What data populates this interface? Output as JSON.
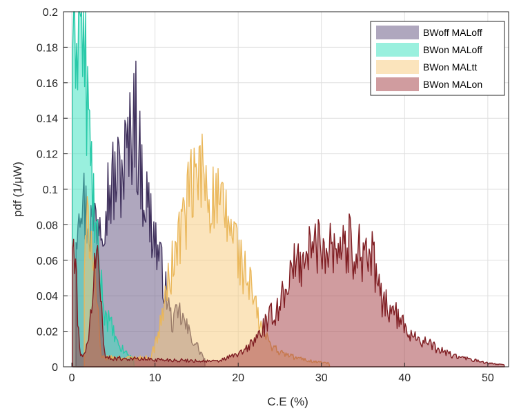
{
  "chart_data": {
    "type": "area",
    "xlabel": "C.E (%)",
    "ylabel": "pdf (1/μW)",
    "xlim": [
      -1,
      52.5
    ],
    "ylim": [
      0,
      0.2
    ],
    "x_ticks": [
      "0",
      "10",
      "20",
      "30",
      "40",
      "50"
    ],
    "x_tick_values": [
      0,
      10,
      20,
      30,
      40,
      50
    ],
    "y_ticks": [
      "0",
      "0.02",
      "0.04",
      "0.06",
      "0.08",
      "0.1",
      "0.12",
      "0.14",
      "0.16",
      "0.18",
      "0.2"
    ],
    "y_tick_values": [
      0,
      0.02,
      0.04,
      0.06,
      0.08,
      0.1,
      0.12,
      0.14,
      0.16,
      0.18,
      0.2
    ],
    "grid": true,
    "legend_position": "top-right",
    "series": [
      {
        "name": "BWoff MALoff",
        "fill": "#5f4f7d",
        "line": "#3e2f5b",
        "peaks": [
          {
            "x": 0.5,
            "y": 0.08
          },
          {
            "x": 1.0,
            "y": 0.107
          },
          {
            "x": 1.5,
            "y": 0.09
          },
          {
            "x": 2.2,
            "y": 0.08
          },
          {
            "x": 3.5,
            "y": 0.09
          },
          {
            "x": 4.0,
            "y": 0.095
          },
          {
            "x": 5.0,
            "y": 0.104
          },
          {
            "x": 6.0,
            "y": 0.11
          },
          {
            "x": 7.0,
            "y": 0.125
          },
          {
            "x": 7.5,
            "y": 0.153
          },
          {
            "x": 8.0,
            "y": 0.12
          },
          {
            "x": 9.0,
            "y": 0.093
          },
          {
            "x": 10.0,
            "y": 0.072
          },
          {
            "x": 11.0,
            "y": 0.05
          },
          {
            "x": 12.0,
            "y": 0.025
          },
          {
            "x": 13.0,
            "y": 0.03
          },
          {
            "x": 14.0,
            "y": 0.02
          },
          {
            "x": 15.0,
            "y": 0.012
          },
          {
            "x": 16.0,
            "y": 0.004
          }
        ]
      },
      {
        "name": "BWon MALoff",
        "fill": "#34e2be",
        "line": "#28c9a8",
        "peaks": [
          {
            "x": 0.1,
            "y": 0.2
          },
          {
            "x": 0.5,
            "y": 0.2
          },
          {
            "x": 1.0,
            "y": 0.2
          },
          {
            "x": 1.3,
            "y": 0.19
          },
          {
            "x": 1.8,
            "y": 0.155
          },
          {
            "x": 2.2,
            "y": 0.12
          },
          {
            "x": 2.7,
            "y": 0.085
          },
          {
            "x": 3.3,
            "y": 0.055
          },
          {
            "x": 4.0,
            "y": 0.03
          },
          {
            "x": 4.8,
            "y": 0.022
          },
          {
            "x": 5.5,
            "y": 0.012
          },
          {
            "x": 6.5,
            "y": 0.008
          },
          {
            "x": 7.5,
            "y": 0.004
          }
        ]
      },
      {
        "name": "BWon MALtt",
        "fill": "#f7c979",
        "line": "#eab75a",
        "peaks": [
          {
            "x": 1.5,
            "y": 0.055
          },
          {
            "x": 2.0,
            "y": 0.085
          },
          {
            "x": 2.5,
            "y": 0.07
          },
          {
            "x": 3.5,
            "y": 0.005
          },
          {
            "x": 9.5,
            "y": 0.005
          },
          {
            "x": 10.5,
            "y": 0.02
          },
          {
            "x": 11.5,
            "y": 0.045
          },
          {
            "x": 12.5,
            "y": 0.065
          },
          {
            "x": 13.5,
            "y": 0.085
          },
          {
            "x": 14.5,
            "y": 0.1
          },
          {
            "x": 15.5,
            "y": 0.11
          },
          {
            "x": 16.5,
            "y": 0.1
          },
          {
            "x": 17.5,
            "y": 0.09
          },
          {
            "x": 18.5,
            "y": 0.083
          },
          {
            "x": 19.5,
            "y": 0.075
          },
          {
            "x": 20.5,
            "y": 0.055
          },
          {
            "x": 21.5,
            "y": 0.045
          },
          {
            "x": 22.5,
            "y": 0.025
          },
          {
            "x": 23.5,
            "y": 0.015
          },
          {
            "x": 25.0,
            "y": 0.008
          },
          {
            "x": 27.0,
            "y": 0.005
          },
          {
            "x": 29.0,
            "y": 0.003
          },
          {
            "x": 31.0,
            "y": 0.002
          }
        ]
      },
      {
        "name": "BWon MALon",
        "fill": "#a13a3f",
        "line": "#7f1d22",
        "peaks": [
          {
            "x": 0.1,
            "y": 0.07
          },
          {
            "x": 0.5,
            "y": 0.05
          },
          {
            "x": 1.0,
            "y": 0.005
          },
          {
            "x": 2.0,
            "y": 0.012
          },
          {
            "x": 2.5,
            "y": 0.045
          },
          {
            "x": 3.0,
            "y": 0.065
          },
          {
            "x": 3.5,
            "y": 0.04
          },
          {
            "x": 4.0,
            "y": 0.005
          },
          {
            "x": 17.5,
            "y": 0.003
          },
          {
            "x": 20.5,
            "y": 0.008
          },
          {
            "x": 22.0,
            "y": 0.015
          },
          {
            "x": 23.5,
            "y": 0.025
          },
          {
            "x": 25.0,
            "y": 0.035
          },
          {
            "x": 26.0,
            "y": 0.05
          },
          {
            "x": 27.5,
            "y": 0.06
          },
          {
            "x": 28.5,
            "y": 0.065
          },
          {
            "x": 30.0,
            "y": 0.07
          },
          {
            "x": 31.0,
            "y": 0.07
          },
          {
            "x": 32.0,
            "y": 0.069
          },
          {
            "x": 33.5,
            "y": 0.068
          },
          {
            "x": 35.0,
            "y": 0.066
          },
          {
            "x": 36.0,
            "y": 0.063
          },
          {
            "x": 37.0,
            "y": 0.04
          },
          {
            "x": 38.5,
            "y": 0.032
          },
          {
            "x": 40.0,
            "y": 0.022
          },
          {
            "x": 42.0,
            "y": 0.015
          },
          {
            "x": 44.0,
            "y": 0.01
          },
          {
            "x": 46.0,
            "y": 0.006
          },
          {
            "x": 48.0,
            "y": 0.004
          },
          {
            "x": 50.0,
            "y": 0.002
          },
          {
            "x": 52.0,
            "y": 0.001
          }
        ]
      }
    ]
  }
}
